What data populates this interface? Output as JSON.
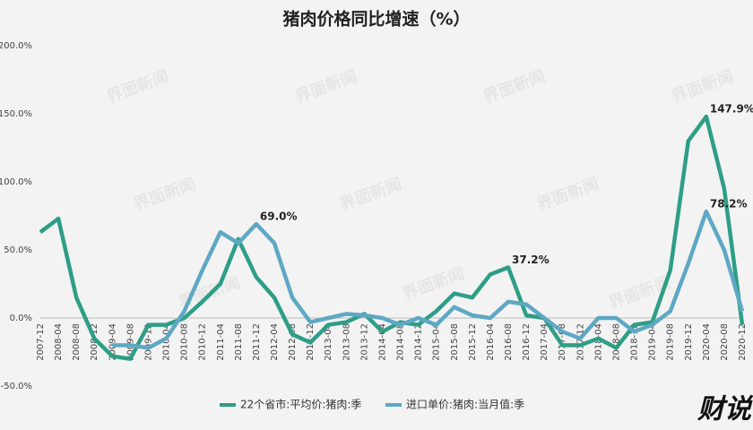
{
  "chart_data": {
    "type": "line",
    "title": "猪肉价格同比增速（%）",
    "logo": "财说",
    "watermark": "界面新闻",
    "categories": [
      "2007-12",
      "2008-04",
      "2008-08",
      "2008-12",
      "2009-04",
      "2009-08",
      "2009-12",
      "2010-04",
      "2010-08",
      "2010-12",
      "2011-04",
      "2011-08",
      "2011-12",
      "2012-04",
      "2012-08",
      "2012-12",
      "2013-04",
      "2013-08",
      "2013-12",
      "2014-04",
      "2014-08",
      "2014-12",
      "2015-04",
      "2015-08",
      "2015-12",
      "2016-04",
      "2016-08",
      "2016-12",
      "2017-04",
      "2017-08",
      "2017-12",
      "2018-04",
      "2018-08",
      "2018-12",
      "2019-04",
      "2019-08",
      "2019-12",
      "2020-04",
      "2020-08",
      "2020-12"
    ],
    "series": [
      {
        "name": "22个省市:平均价:猪肉:季",
        "color": "#2e9e86",
        "values": [
          63,
          73,
          15,
          -15,
          -28,
          -30,
          -5,
          -5,
          0,
          12,
          25,
          58,
          30,
          15,
          -12,
          -18,
          -5,
          -3,
          3,
          -10,
          -3,
          -5,
          5,
          18,
          15,
          32,
          37.2,
          2,
          0,
          -20,
          -20,
          -15,
          -22,
          -5,
          -3,
          35,
          130,
          147.9,
          95,
          -5
        ],
        "value_labels": [
          null,
          null,
          null,
          null,
          null,
          null,
          null,
          null,
          null,
          null,
          null,
          null,
          null,
          null,
          null,
          null,
          null,
          null,
          null,
          null,
          null,
          null,
          null,
          null,
          null,
          null,
          "37.2%",
          null,
          null,
          null,
          null,
          null,
          null,
          null,
          null,
          null,
          null,
          "147.9%",
          null,
          null
        ]
      },
      {
        "name": "进口单价:猪肉:当月值:季",
        "color": "#5ea8c4",
        "values": [
          null,
          null,
          null,
          null,
          -20,
          -20,
          -22,
          -15,
          5,
          35,
          63,
          55,
          69.0,
          55,
          15,
          -3,
          0,
          3,
          2,
          0,
          -5,
          0,
          -5,
          8,
          2,
          0,
          12,
          10,
          0,
          -10,
          -15,
          0,
          0,
          -10,
          -5,
          5,
          40,
          78.2,
          50,
          5
        ],
        "value_labels": [
          null,
          null,
          null,
          null,
          null,
          null,
          null,
          null,
          null,
          null,
          null,
          null,
          "69.0%",
          null,
          null,
          null,
          null,
          null,
          null,
          null,
          null,
          null,
          null,
          null,
          null,
          null,
          null,
          null,
          null,
          null,
          null,
          null,
          null,
          null,
          null,
          null,
          null,
          "78.2%",
          null,
          null
        ]
      }
    ],
    "ylim": [
      -50,
      200
    ],
    "yticks": [
      {
        "value": -50,
        "label": "-50.0%"
      },
      {
        "value": 0,
        "label": "0.0%"
      },
      {
        "value": 50,
        "label": "50.0%"
      },
      {
        "value": 100,
        "label": "100.0%"
      },
      {
        "value": 150,
        "label": "150.0%"
      },
      {
        "value": 200,
        "label": "200.0%"
      }
    ]
  }
}
